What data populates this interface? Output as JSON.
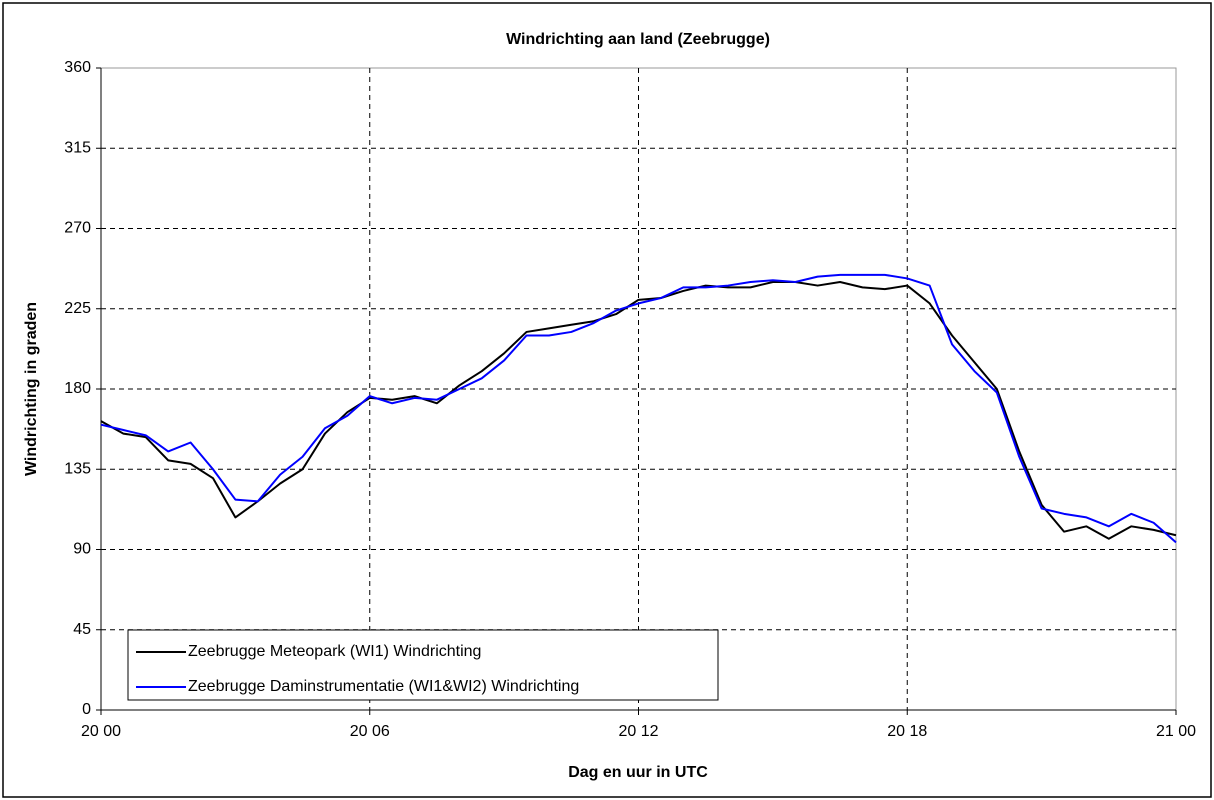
{
  "chart_data": {
    "type": "line",
    "title": "Windrichting aan land (Zeebrugge)",
    "x_label": "Dag en uur in UTC",
    "y_label": "Windrichting in graden",
    "x": [
      0,
      0.5,
      1,
      1.5,
      2,
      2.5,
      3,
      3.5,
      4,
      4.5,
      5,
      5.5,
      6,
      6.5,
      7,
      7.5,
      8,
      8.5,
      9,
      9.5,
      10,
      10.5,
      11,
      11.5,
      12,
      12.5,
      13,
      13.5,
      14,
      14.5,
      15,
      15.5,
      16,
      16.5,
      17,
      17.5,
      18,
      18.5,
      19,
      19.5,
      20,
      20.5,
      21,
      21.5,
      22,
      22.5,
      23,
      23.5,
      24
    ],
    "series": [
      {
        "name": "Zeebrugge Meteopark (WI1) Windrichting",
        "color": "#000000",
        "values": [
          162,
          155,
          153,
          140,
          138,
          130,
          108,
          117,
          127,
          135,
          155,
          167,
          175,
          174,
          176,
          172,
          182,
          190,
          200,
          212,
          214,
          216,
          218,
          222,
          230,
          231,
          235,
          238,
          237,
          237,
          240,
          240,
          238,
          240,
          237,
          236,
          238,
          228,
          210,
          195,
          180,
          145,
          115,
          100,
          103,
          96,
          103,
          101,
          98
        ]
      },
      {
        "name": "Zeebrugge Daminstrumentatie (WI1&WI2) Windrichting",
        "color": "#0000ff",
        "values": [
          160,
          157,
          154,
          145,
          150,
          135,
          118,
          117,
          132,
          142,
          158,
          165,
          176,
          172,
          175,
          174,
          180,
          186,
          196,
          210,
          210,
          212,
          217,
          224,
          228,
          231,
          237,
          237,
          238,
          240,
          241,
          240,
          243,
          244,
          244,
          244,
          242,
          238,
          205,
          190,
          178,
          142,
          113,
          110,
          108,
          103,
          110,
          105,
          94
        ]
      }
    ],
    "xlim": [
      0,
      24
    ],
    "xticks": [
      {
        "value": 0,
        "label": "20 00"
      },
      {
        "value": 6,
        "label": "20 06"
      },
      {
        "value": 12,
        "label": "20 12"
      },
      {
        "value": 18,
        "label": "20 18"
      },
      {
        "value": 24,
        "label": "21 00"
      }
    ],
    "ylim": [
      0,
      360
    ],
    "yticks": [
      0,
      45,
      90,
      135,
      180,
      225,
      270,
      315,
      360
    ],
    "grid": true
  }
}
